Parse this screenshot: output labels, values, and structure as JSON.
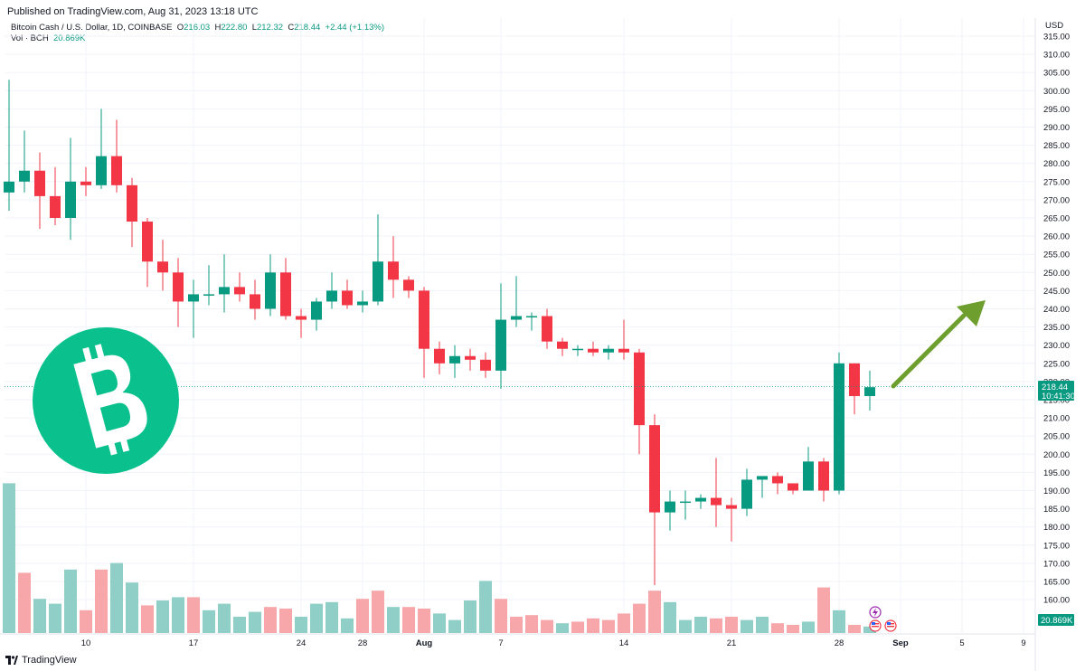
{
  "header": {
    "published": "Published on TradingView.com, Aug 31, 2023 13:18 UTC"
  },
  "legend": {
    "symbol": "Bitcoin Cash / U.S. Dollar, 1D, COINBASE",
    "o_label": "O",
    "o_value": "216.03",
    "h_label": "H",
    "h_value": "222.80",
    "l_label": "L",
    "l_value": "212.32",
    "c_label": "C",
    "c_value": "218.44",
    "change": "+2.44 (+1.13%)",
    "vol_label": "Vol · BCH",
    "vol_value": "20.869K"
  },
  "price_scale": {
    "currency": "USD",
    "last_price": "218.44",
    "countdown": "10:41:30",
    "volume_tag": "20.869K"
  },
  "footer": {
    "brand": "TradingView"
  },
  "colors": {
    "up": "#089981",
    "down": "#F23645",
    "up_volume": "#8FCFC8",
    "down_volume": "#F7A7A9",
    "bch_logo": "#0AC18E",
    "arrow": "#6E9F2E",
    "grid": "#F0F3FA"
  },
  "icons": [
    "bitcoin-cash-logo",
    "trend-up-arrow",
    "earnings-icon",
    "us-flag-icon",
    "tradingview-logo"
  ],
  "chart_data": {
    "type": "candlestick",
    "title": "Bitcoin Cash / U.S. Dollar, 1D, COINBASE",
    "ylabel": "USD",
    "ylim": [
      155,
      315
    ],
    "ticks_y": [
      "315.00",
      "310.00",
      "305.00",
      "300.00",
      "295.00",
      "290.00",
      "285.00",
      "280.00",
      "275.00",
      "270.00",
      "265.00",
      "260.00",
      "255.00",
      "250.00",
      "245.00",
      "240.00",
      "235.00",
      "230.00",
      "225.00",
      "220.00",
      "215.00",
      "210.00",
      "205.00",
      "200.00",
      "195.00",
      "190.00",
      "185.00",
      "180.00",
      "175.00",
      "170.00",
      "165.00",
      "160.00"
    ],
    "ticks_x": [
      "10",
      "17",
      "24",
      "28",
      "Aug",
      "7",
      "14",
      "21",
      "28",
      "Sep",
      "5",
      "9"
    ],
    "grid": true,
    "candles": [
      {
        "d": "Jul 05",
        "o": 272,
        "h": 303,
        "l": 267,
        "c": 275
      },
      {
        "d": "Jul 06",
        "o": 275,
        "h": 289,
        "l": 272,
        "c": 278
      },
      {
        "d": "Jul 07",
        "o": 278,
        "h": 283,
        "l": 262,
        "c": 271
      },
      {
        "d": "Jul 08",
        "o": 271,
        "h": 279,
        "l": 263,
        "c": 265
      },
      {
        "d": "Jul 09",
        "o": 265,
        "h": 287,
        "l": 259,
        "c": 275
      },
      {
        "d": "Jul 10",
        "o": 275,
        "h": 279,
        "l": 271,
        "c": 274
      },
      {
        "d": "Jul 11",
        "o": 274,
        "h": 295,
        "l": 273,
        "c": 282
      },
      {
        "d": "Jul 12",
        "o": 282,
        "h": 292,
        "l": 272,
        "c": 274
      },
      {
        "d": "Jul 13",
        "o": 274,
        "h": 276,
        "l": 257,
        "c": 264
      },
      {
        "d": "Jul 14",
        "o": 264,
        "h": 265,
        "l": 246,
        "c": 253
      },
      {
        "d": "Jul 15",
        "o": 253,
        "h": 259,
        "l": 245,
        "c": 250
      },
      {
        "d": "Jul 16",
        "o": 250,
        "h": 254,
        "l": 235,
        "c": 242
      },
      {
        "d": "Jul 17",
        "o": 242,
        "h": 248,
        "l": 232,
        "c": 244
      },
      {
        "d": "Jul 18",
        "o": 244,
        "h": 252,
        "l": 241,
        "c": 244
      },
      {
        "d": "Jul 19",
        "o": 244,
        "h": 255,
        "l": 239,
        "c": 246
      },
      {
        "d": "Jul 20",
        "o": 246,
        "h": 250,
        "l": 242,
        "c": 244
      },
      {
        "d": "Jul 21",
        "o": 244,
        "h": 248,
        "l": 237,
        "c": 240
      },
      {
        "d": "Jul 22",
        "o": 240,
        "h": 255,
        "l": 238,
        "c": 250
      },
      {
        "d": "Jul 23",
        "o": 250,
        "h": 254,
        "l": 237,
        "c": 238
      },
      {
        "d": "Jul 24",
        "o": 238,
        "h": 240,
        "l": 232,
        "c": 237
      },
      {
        "d": "Jul 25",
        "o": 237,
        "h": 243,
        "l": 234,
        "c": 242
      },
      {
        "d": "Jul 26",
        "o": 242,
        "h": 250,
        "l": 240,
        "c": 245
      },
      {
        "d": "Jul 27",
        "o": 245,
        "h": 248,
        "l": 240,
        "c": 241
      },
      {
        "d": "Jul 28",
        "o": 241,
        "h": 245,
        "l": 239,
        "c": 242
      },
      {
        "d": "Jul 29",
        "o": 242,
        "h": 266,
        "l": 241,
        "c": 253
      },
      {
        "d": "Jul 30",
        "o": 253,
        "h": 260,
        "l": 243,
        "c": 248
      },
      {
        "d": "Jul 31",
        "o": 248,
        "h": 249,
        "l": 243,
        "c": 245
      },
      {
        "d": "Aug 01",
        "o": 245,
        "h": 246,
        "l": 221,
        "c": 229
      },
      {
        "d": "Aug 02",
        "o": 229,
        "h": 231,
        "l": 222,
        "c": 225
      },
      {
        "d": "Aug 03",
        "o": 225,
        "h": 230,
        "l": 221,
        "c": 227
      },
      {
        "d": "Aug 04",
        "o": 227,
        "h": 229,
        "l": 223,
        "c": 226
      },
      {
        "d": "Aug 05",
        "o": 226,
        "h": 228,
        "l": 221,
        "c": 223
      },
      {
        "d": "Aug 06",
        "o": 223,
        "h": 247,
        "l": 218,
        "c": 237
      },
      {
        "d": "Aug 07",
        "o": 237,
        "h": 249,
        "l": 235,
        "c": 238
      },
      {
        "d": "Aug 08",
        "o": 238,
        "h": 239,
        "l": 234,
        "c": 238
      },
      {
        "d": "Aug 09",
        "o": 238,
        "h": 240,
        "l": 229,
        "c": 231
      },
      {
        "d": "Aug 10",
        "o": 231,
        "h": 232,
        "l": 227,
        "c": 229
      },
      {
        "d": "Aug 11",
        "o": 229,
        "h": 230,
        "l": 227,
        "c": 229
      },
      {
        "d": "Aug 12",
        "o": 229,
        "h": 231,
        "l": 227,
        "c": 228
      },
      {
        "d": "Aug 13",
        "o": 228,
        "h": 230,
        "l": 226,
        "c": 229
      },
      {
        "d": "Aug 14",
        "o": 229,
        "h": 237,
        "l": 226,
        "c": 228
      },
      {
        "d": "Aug 15",
        "o": 228,
        "h": 229,
        "l": 200,
        "c": 208
      },
      {
        "d": "Aug 16",
        "o": 208,
        "h": 211,
        "l": 164,
        "c": 184
      },
      {
        "d": "Aug 17",
        "o": 184,
        "h": 190,
        "l": 179,
        "c": 187
      },
      {
        "d": "Aug 18",
        "o": 187,
        "h": 190,
        "l": 182,
        "c": 187
      },
      {
        "d": "Aug 19",
        "o": 187,
        "h": 189,
        "l": 185,
        "c": 188
      },
      {
        "d": "Aug 20",
        "o": 188,
        "h": 199,
        "l": 180,
        "c": 186
      },
      {
        "d": "Aug 21",
        "o": 186,
        "h": 188,
        "l": 176,
        "c": 185
      },
      {
        "d": "Aug 22",
        "o": 185,
        "h": 196,
        "l": 183,
        "c": 193
      },
      {
        "d": "Aug 23",
        "o": 193,
        "h": 194,
        "l": 188,
        "c": 194
      },
      {
        "d": "Aug 24",
        "o": 194,
        "h": 195,
        "l": 189,
        "c": 192
      },
      {
        "d": "Aug 25",
        "o": 192,
        "h": 192,
        "l": 189,
        "c": 190
      },
      {
        "d": "Aug 26",
        "o": 190,
        "h": 202,
        "l": 190,
        "c": 198
      },
      {
        "d": "Aug 27",
        "o": 198,
        "h": 199,
        "l": 187,
        "c": 190
      },
      {
        "d": "Aug 28",
        "o": 190,
        "h": 228,
        "l": 189,
        "c": 225
      },
      {
        "d": "Aug 29",
        "o": 225,
        "h": 225,
        "l": 211,
        "c": 216
      },
      {
        "d": "Aug 30",
        "o": 216,
        "h": 223,
        "l": 212,
        "c": 218.44
      }
    ],
    "volume": {
      "ylim": [
        0,
        100
      ],
      "values": [
        92,
        37,
        21,
        18,
        39,
        14,
        39,
        43,
        31,
        17,
        20,
        22,
        22,
        14,
        18,
        10,
        13,
        16,
        15,
        10,
        18,
        19,
        9,
        21,
        26,
        16,
        16,
        15,
        12,
        8,
        20,
        32,
        21,
        10,
        11,
        8,
        6,
        7,
        9,
        8,
        12,
        18,
        26,
        19,
        8,
        10,
        9,
        10,
        8,
        10,
        6,
        5,
        7,
        28,
        14,
        5,
        4
      ],
      "up_days": [
        1,
        0,
        1,
        1,
        1,
        0,
        0,
        1,
        1,
        0,
        1,
        1,
        0,
        1,
        1,
        1,
        1,
        0,
        0,
        1,
        1,
        1,
        1,
        0,
        0,
        1,
        0,
        0,
        1,
        1,
        1,
        1,
        0,
        0,
        0,
        0,
        1,
        0,
        0,
        0,
        0,
        0,
        0,
        1,
        1,
        1,
        0,
        0,
        1,
        1,
        0,
        0,
        1,
        0,
        1,
        0,
        1
      ]
    }
  }
}
